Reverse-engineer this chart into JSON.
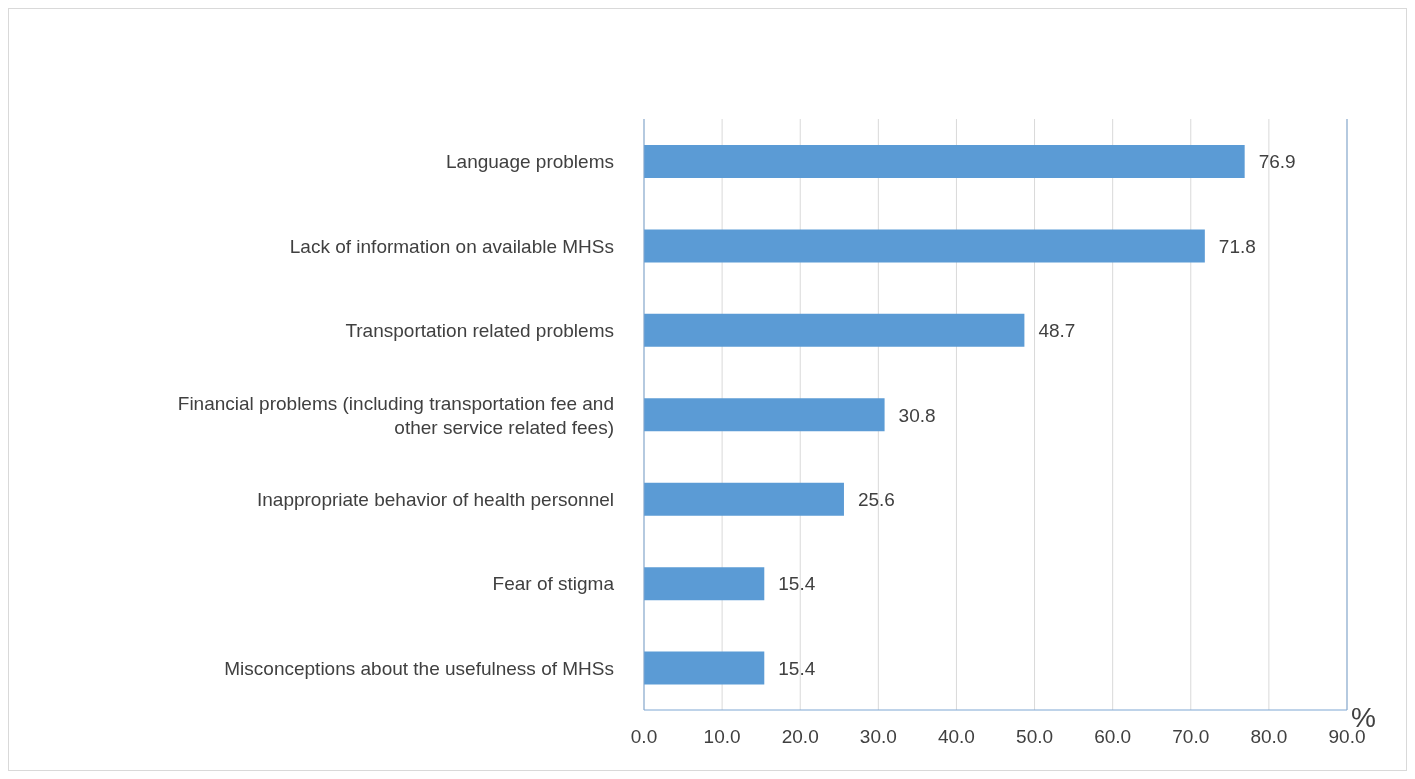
{
  "chart_data": {
    "type": "bar",
    "orientation": "horizontal",
    "categories": [
      "Language problems",
      "Lack of information on available MHSs",
      "Transportation related problems",
      "Financial problems (including transportation fee and other service related fees)",
      "Inappropriate behavior of health personnel",
      "Fear of stigma",
      "Misconceptions about the usefulness of MHSs"
    ],
    "values": [
      76.9,
      71.8,
      48.7,
      30.8,
      25.6,
      15.4,
      15.4
    ],
    "color": "#5b9bd5",
    "xlabel": "%",
    "xlim": [
      0,
      90
    ],
    "xticks": [
      {
        "value": 0,
        "label": "0.0"
      },
      {
        "value": 10,
        "label": "10.0"
      },
      {
        "value": 20,
        "label": "20.0"
      },
      {
        "value": 30,
        "label": "30.0"
      },
      {
        "value": 40,
        "label": "40.0"
      },
      {
        "value": 50,
        "label": "50.0"
      },
      {
        "value": 60,
        "label": "60.0"
      },
      {
        "value": 70,
        "label": "70.0"
      },
      {
        "value": 80,
        "label": "80.0"
      },
      {
        "value": 90,
        "label": "90.0"
      }
    ],
    "grid": "x",
    "data_labels": true
  }
}
